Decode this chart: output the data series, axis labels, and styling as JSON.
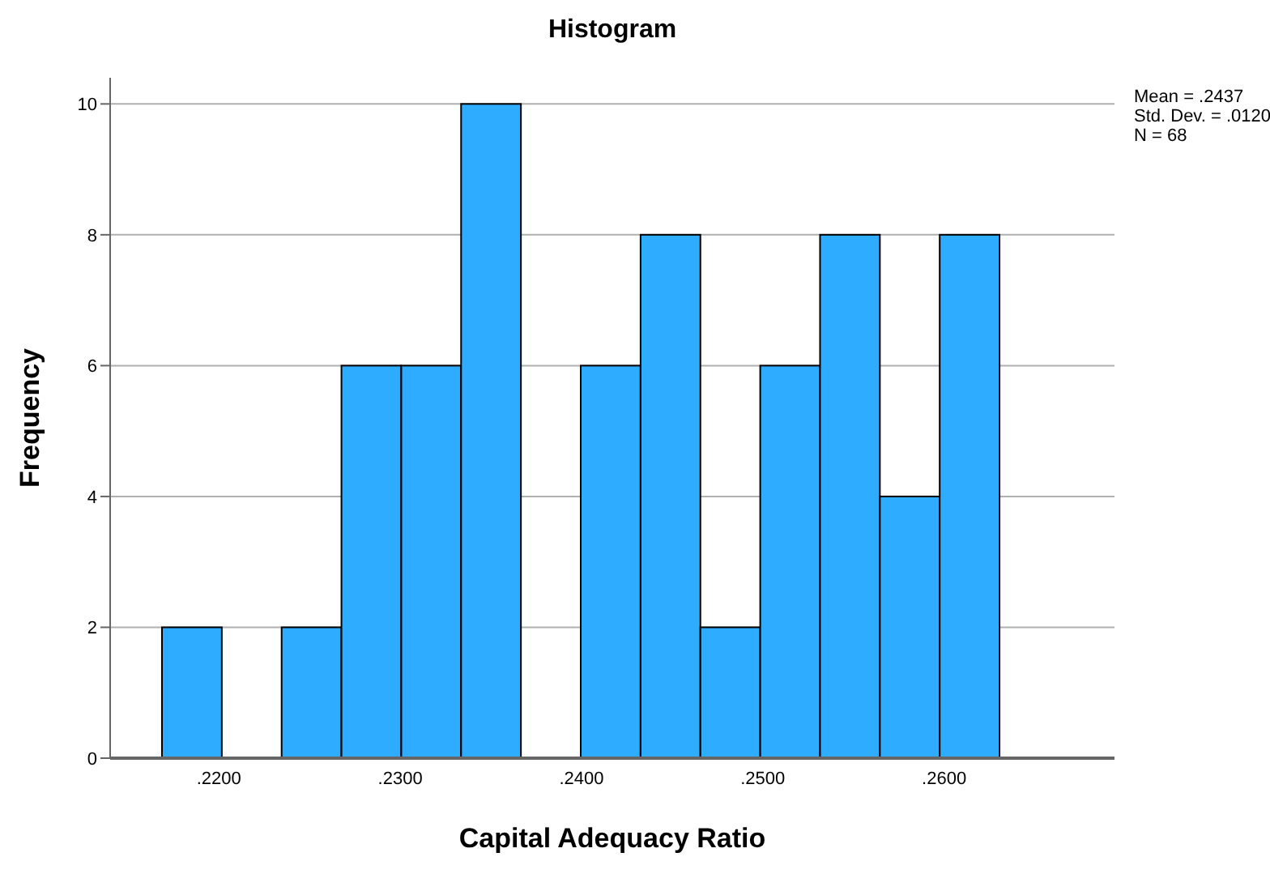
{
  "chart_data": {
    "type": "histogram",
    "title": "Histogram",
    "xlabel": "Capital Adequacy Ratio",
    "ylabel": "Frequency",
    "bins": [
      0.2169,
      0.2202,
      0.2235,
      0.2268,
      0.2301,
      0.2334,
      0.2367,
      0.24,
      0.2433,
      0.2466,
      0.2499,
      0.2532,
      0.2565,
      0.2598,
      0.2631
    ],
    "values": [
      2,
      0,
      2,
      6,
      6,
      10,
      0,
      6,
      8,
      2,
      6,
      8,
      4,
      8
    ],
    "color": "#2eacff",
    "xlim": [
      0.214,
      0.2694
    ],
    "xticks": [
      {
        "value": 0.22,
        "label": ".2200"
      },
      {
        "value": 0.23,
        "label": ".2300"
      },
      {
        "value": 0.24,
        "label": ".2400"
      },
      {
        "value": 0.25,
        "label": ".2500"
      },
      {
        "value": 0.26,
        "label": ".2600"
      }
    ],
    "ylim": [
      0,
      10.4
    ],
    "yticks": [
      0,
      2,
      4,
      6,
      8,
      10
    ],
    "grid": "y",
    "annotations": [
      "Mean = .2437",
      "Std. Dev. = .0120",
      "N = 68"
    ]
  }
}
